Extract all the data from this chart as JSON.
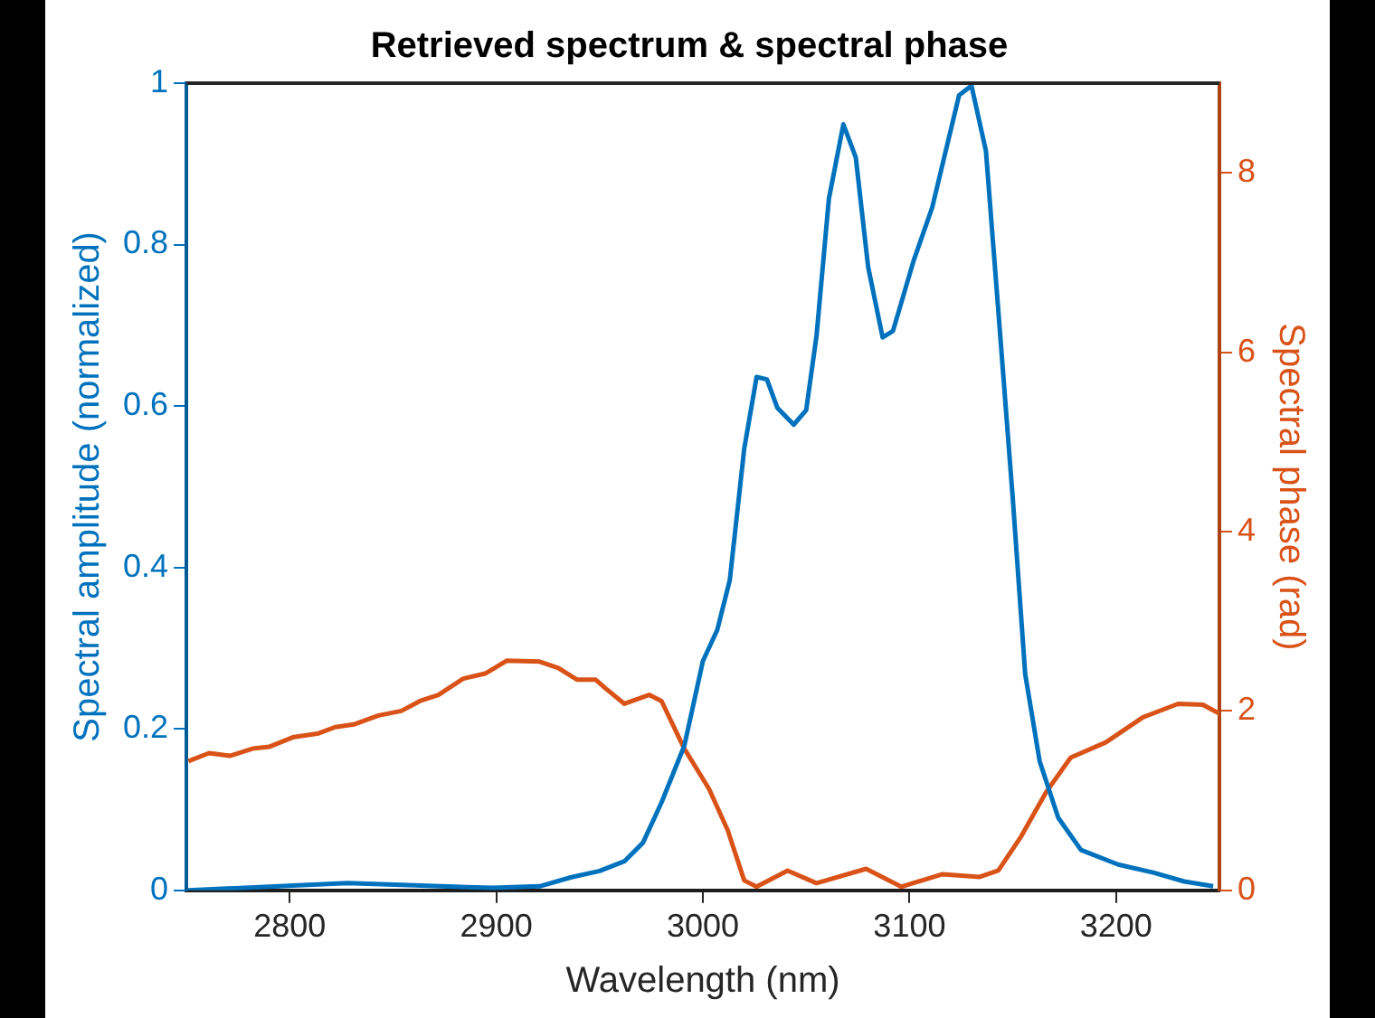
{
  "chart_data": {
    "type": "line",
    "title": "Retrieved spectrum & spectral phase",
    "xlabel": "Wavelength (nm)",
    "ylabel": "Spectral amplitude (normalized)",
    "y2label": "Spectral phase (rad)",
    "xlim": [
      2750,
      3250
    ],
    "xticks": [
      2800,
      2900,
      3000,
      3100,
      3200
    ],
    "ylim": [
      0,
      1
    ],
    "yticks": [
      0,
      0.2,
      0.4,
      0.6,
      0.8,
      1
    ],
    "y2lim": [
      0,
      9
    ],
    "y2ticks": [
      0,
      2,
      4,
      6,
      8
    ],
    "grid": false,
    "legend": false,
    "marker": "none",
    "line_style": "solid",
    "series": [
      {
        "color": "#0072bd",
        "x": [
          2751,
          2828,
          2898,
          2921,
          2936,
          2950,
          2962,
          2971,
          2980,
          2988,
          2991,
          3000,
          3007,
          3013,
          3020,
          3026,
          3031,
          3036,
          3044,
          3050,
          3055,
          3061,
          3068,
          3074,
          3080,
          3087,
          3092,
          3102,
          3111,
          3124,
          3130,
          3137,
          3143,
          3150,
          3156,
          3163,
          3172,
          3183,
          3201,
          3218,
          3233,
          3247
        ],
        "values": [
          0,
          0.009,
          0.003,
          0.005,
          0.016,
          0.024,
          0.036,
          0.059,
          0.109,
          0.16,
          0.179,
          0.284,
          0.323,
          0.384,
          0.547,
          0.636,
          0.633,
          0.598,
          0.577,
          0.595,
          0.687,
          0.857,
          0.949,
          0.908,
          0.772,
          0.685,
          0.693,
          0.78,
          0.846,
          0.985,
          0.997,
          0.916,
          0.718,
          0.485,
          0.268,
          0.16,
          0.09,
          0.05,
          0.032,
          0.022,
          0.011,
          0.005
        ]
      },
      {
        "color": "#d95319",
        "axis": "y2",
        "x": [
          2751,
          2761,
          2771,
          2782,
          2790,
          2802,
          2814,
          2822,
          2831,
          2843,
          2854,
          2863,
          2872,
          2884,
          2895,
          2905,
          2921,
          2930,
          2939,
          2948,
          2953,
          2962,
          2974,
          2980,
          2991,
          3003,
          3012,
          3020,
          3026,
          3041,
          3055,
          3079,
          3096,
          3116,
          3134,
          3143,
          3154,
          3166,
          3178,
          3195,
          3213,
          3230,
          3242,
          3250
        ],
        "values": [
          1.44,
          1.53,
          1.5,
          1.58,
          1.6,
          1.71,
          1.75,
          1.82,
          1.85,
          1.95,
          2.0,
          2.11,
          2.18,
          2.36,
          2.42,
          2.56,
          2.55,
          2.48,
          2.35,
          2.35,
          2.25,
          2.08,
          2.18,
          2.11,
          1.58,
          1.13,
          0.67,
          0.11,
          0.04,
          0.22,
          0.08,
          0.24,
          0.04,
          0.18,
          0.15,
          0.22,
          0.6,
          1.09,
          1.48,
          1.65,
          1.93,
          2.08,
          2.07,
          1.97
        ]
      }
    ]
  }
}
